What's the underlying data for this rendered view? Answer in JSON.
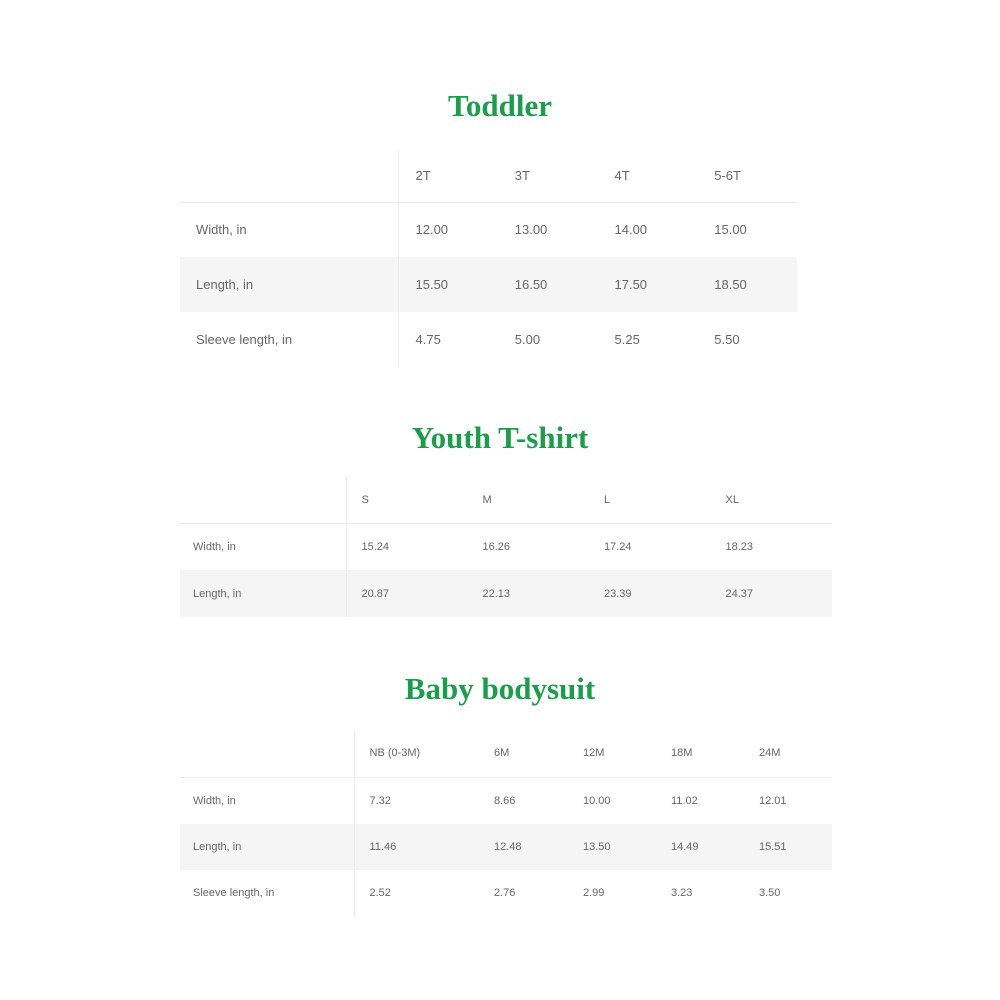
{
  "sections": [
    {
      "title": "Toddler",
      "headers": [
        "",
        "2T",
        "3T",
        "4T",
        "5-6T"
      ],
      "rows": [
        [
          "Width, in",
          "12.00",
          "13.00",
          "14.00",
          "15.00"
        ],
        [
          "Length, in",
          "15.50",
          "16.50",
          "17.50",
          "18.50"
        ],
        [
          "Sleeve length, in",
          "4.75",
          "5.00",
          "5.25",
          "5.50"
        ]
      ]
    },
    {
      "title": "Youth T-shirt",
      "headers": [
        "",
        "S",
        "M",
        "L",
        "XL"
      ],
      "rows": [
        [
          "Width, in",
          "15.24",
          "16.26",
          "17.24",
          "18.23"
        ],
        [
          "Length, in",
          "20.87",
          "22.13",
          "23.39",
          "24.37"
        ]
      ]
    },
    {
      "title": "Baby bodysuit",
      "headers": [
        "",
        "NB (0-3M)",
        "6M",
        "12M",
        "18M",
        "24M"
      ],
      "rows": [
        [
          "Width, in",
          "7.32",
          "8.66",
          "10.00",
          "11.02",
          "12.01"
        ],
        [
          "Length, in",
          "11.46",
          "12.48",
          "13.50",
          "14.49",
          "15.51"
        ],
        [
          "Sleeve length, in",
          "2.52",
          "2.76",
          "2.99",
          "3.23",
          "3.50"
        ]
      ]
    }
  ],
  "colors": {
    "title": "#1a9e4b",
    "text": "#666666",
    "stripe": "#f5f5f5"
  }
}
